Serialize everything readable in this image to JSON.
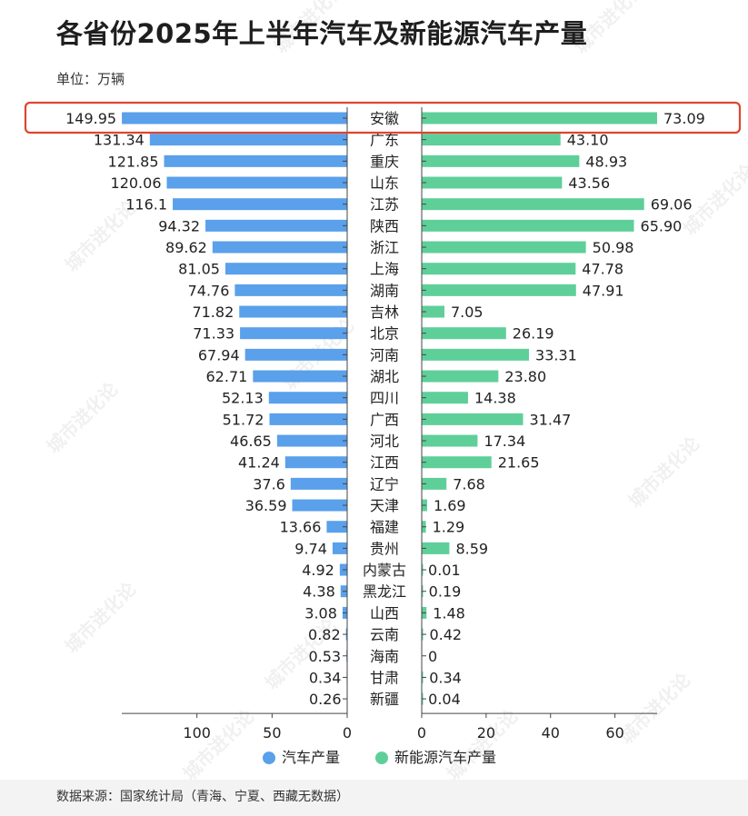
{
  "title": "各省份2025年上半年汽车及新能源汽车产量",
  "unit": "单位：万辆",
  "source": "数据来源：国家统计局（青海、宁夏、西藏无数据）",
  "watermark": "城市进化论",
  "colors": {
    "car": "#5aa0ea",
    "nev": "#5fcf9a",
    "highlight": "#e0442e",
    "axis": "#444444"
  },
  "chart_data": {
    "type": "bar",
    "orientation": "horizontal-butterfly",
    "highlighted_category": "安徽",
    "categories": [
      "安徽",
      "广东",
      "重庆",
      "山东",
      "江苏",
      "陕西",
      "浙江",
      "上海",
      "湖南",
      "吉林",
      "北京",
      "河南",
      "湖北",
      "四川",
      "广西",
      "河北",
      "江西",
      "辽宁",
      "天津",
      "福建",
      "贵州",
      "内蒙古",
      "黑龙江",
      "山西",
      "云南",
      "海南",
      "甘肃",
      "新疆"
    ],
    "series": [
      {
        "name": "汽车产量",
        "side": "left",
        "values": [
          149.95,
          131.34,
          121.85,
          120.06,
          116.1,
          94.32,
          89.62,
          81.05,
          74.76,
          71.82,
          71.33,
          67.94,
          62.71,
          52.13,
          51.72,
          46.65,
          41.24,
          37.6,
          36.59,
          13.66,
          9.74,
          4.92,
          4.38,
          3.08,
          0.82,
          0.53,
          0.34,
          0.26
        ],
        "labels": [
          "149.95",
          "131.34",
          "121.85",
          "120.06",
          "116.1",
          "94.32",
          "89.62",
          "81.05",
          "74.76",
          "71.82",
          "71.33",
          "67.94",
          "62.71",
          "52.13",
          "51.72",
          "46.65",
          "41.24",
          "37.6",
          "36.59",
          "13.66",
          "9.74",
          "4.92",
          "4.38",
          "3.08",
          "0.82",
          "0.53",
          "0.34",
          "0.26"
        ],
        "axis_ticks": [
          "100",
          "50",
          "0"
        ],
        "tick_values": [
          100,
          50,
          0
        ],
        "xlim": [
          0,
          150
        ]
      },
      {
        "name": "新能源汽车产量",
        "side": "right",
        "values": [
          73.09,
          43.1,
          48.93,
          43.56,
          69.06,
          65.9,
          50.98,
          47.78,
          47.91,
          7.05,
          26.19,
          33.31,
          23.8,
          14.38,
          31.47,
          17.34,
          21.65,
          7.68,
          1.69,
          1.29,
          8.59,
          0.01,
          0.19,
          1.48,
          0.42,
          0,
          0.34,
          0.04
        ],
        "labels": [
          "73.09",
          "43.10",
          "48.93",
          "43.56",
          "69.06",
          "65.90",
          "50.98",
          "47.78",
          "47.91",
          "7.05",
          "26.19",
          "33.31",
          "23.80",
          "14.38",
          "31.47",
          "17.34",
          "21.65",
          "7.68",
          "1.69",
          "1.29",
          "8.59",
          "0.01",
          "0.19",
          "1.48",
          "0.42",
          "0",
          "0.34",
          "0.04"
        ],
        "axis_ticks": [
          "0",
          "20",
          "40",
          "60"
        ],
        "tick_values": [
          0,
          20,
          40,
          60
        ],
        "xlim": [
          0,
          73.09
        ]
      }
    ],
    "legend": [
      "汽车产量",
      "新能源汽车产量"
    ],
    "legend_position": "bottom",
    "grid": false
  }
}
